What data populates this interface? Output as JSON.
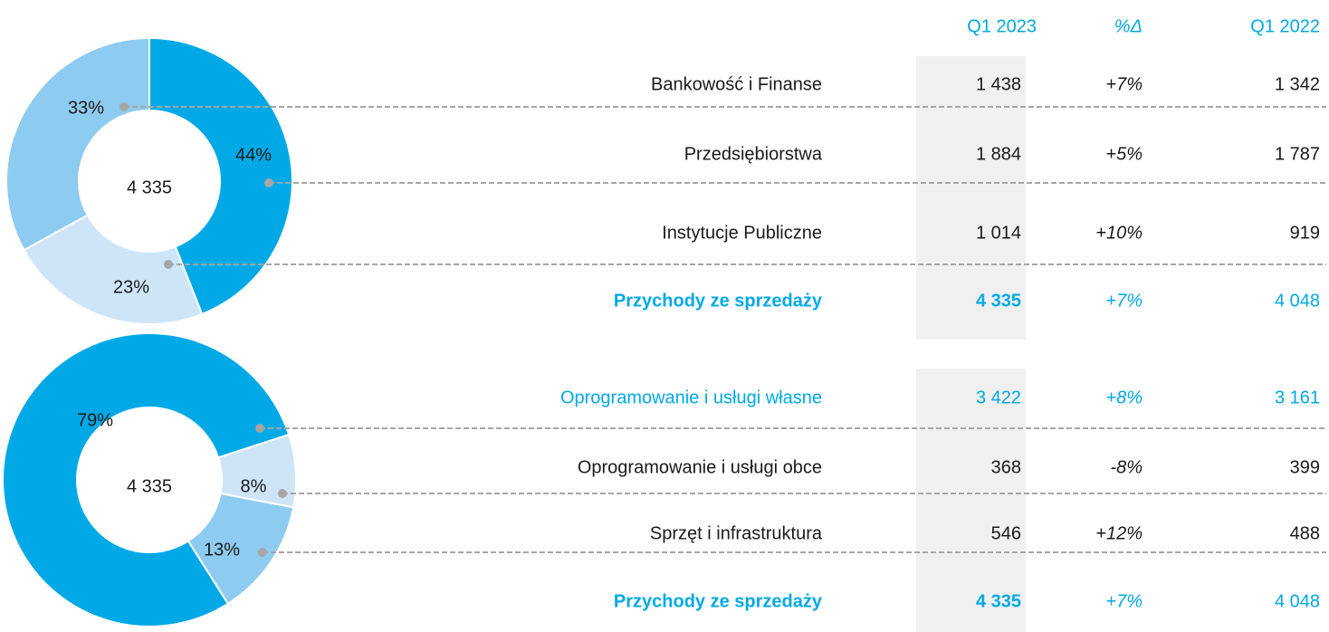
{
  "chart_data": [
    {
      "type": "pie",
      "donut": true,
      "center_label": "4 335",
      "values": [
        44,
        23,
        33
      ],
      "value_labels": [
        "44%",
        "23%",
        "33%"
      ],
      "colors": [
        "#00a9e6",
        "#cde5f7",
        "#8ecbf0"
      ]
    },
    {
      "type": "pie",
      "donut": true,
      "center_label": "4 335",
      "values": [
        8,
        13,
        79
      ],
      "value_labels": [
        "8%",
        "13%",
        "79%"
      ],
      "colors": [
        "#cde5f7",
        "#8ecbf0",
        "#00a9e6"
      ]
    }
  ],
  "table": {
    "header": [
      "Q1 2023",
      "%Δ",
      "Q1 2022"
    ],
    "groups": [
      {
        "rows": [
          {
            "label": "Bankowość i Finanse",
            "values": [
              "1 438",
              "+7%",
              "1 342"
            ]
          },
          {
            "label": "Przedsiębiorstwa",
            "values": [
              "1 884",
              "+5%",
              "1 787"
            ]
          },
          {
            "label": "Instytucje Publiczne",
            "values": [
              "1 014",
              "+10%",
              "919"
            ]
          }
        ],
        "total": {
          "label": "Przychody ze sprzedaży",
          "values": [
            "4 335",
            "+7%",
            "4 048"
          ]
        }
      },
      {
        "rows": [
          {
            "label": "Oprogramowanie i usługi własne",
            "values": [
              "3 422",
              "+8%",
              "3 161"
            ]
          },
          {
            "label": "Oprogramowanie i usługi obce",
            "values": [
              "368",
              "-8%",
              "399"
            ]
          },
          {
            "label": "Sprzęt i infrastruktura",
            "values": [
              "546",
              "+12%",
              "488"
            ]
          }
        ],
        "total": {
          "label": "Przychody ze sprzedaży",
          "values": [
            "4 335",
            "+7%",
            "4 048"
          ]
        }
      }
    ]
  }
}
